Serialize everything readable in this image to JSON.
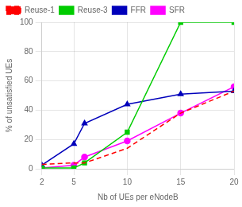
{
  "chart_data": {
    "type": "line",
    "x": [
      2,
      5,
      6,
      10,
      15,
      20
    ],
    "series": [
      {
        "name": "Reuse-1",
        "color": "#FF0000",
        "values": [
          3,
          4,
          4,
          14,
          38,
          53
        ],
        "line_style": "dashed",
        "marker": "none"
      },
      {
        "name": "Reuse-3",
        "color": "#00CC00",
        "values": [
          0.5,
          0.5,
          4,
          25,
          100,
          100
        ],
        "line_style": "solid",
        "marker": "square"
      },
      {
        "name": "FFR",
        "color": "#0000BB",
        "values": [
          2.5,
          17,
          31,
          44,
          51,
          53
        ],
        "line_style": "solid",
        "marker": "triangle"
      },
      {
        "name": "SFR",
        "color": "#FF00FF",
        "values": [
          0.5,
          2.5,
          8,
          19,
          38,
          56
        ],
        "line_style": "solid",
        "marker": "circle"
      }
    ],
    "xlabel": "Nb of UEs per eNodeB",
    "ylabel": "% of unsatisfied UEs",
    "xlim": [
      2,
      20
    ],
    "ylim": [
      0,
      100
    ],
    "xticks": [
      2,
      5,
      10,
      15,
      20
    ],
    "yticks": [
      0,
      20,
      40,
      60,
      80,
      100
    ],
    "grid": true,
    "legend": "upper left"
  }
}
